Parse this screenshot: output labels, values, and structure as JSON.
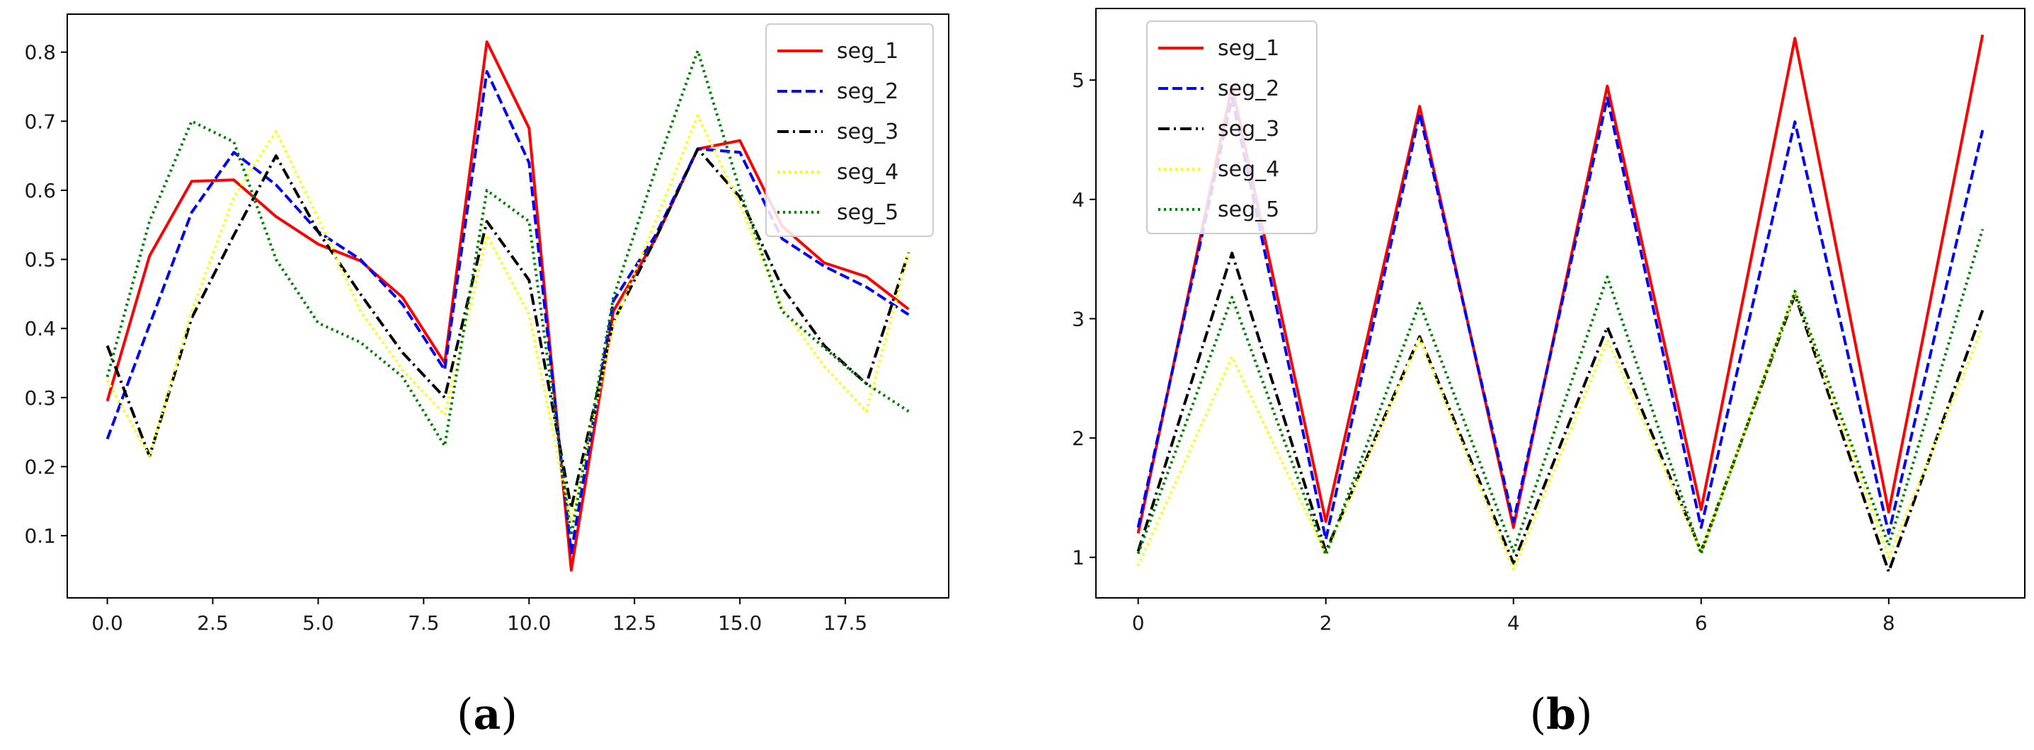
{
  "chart_data": [
    {
      "type": "line",
      "caption_open": "(",
      "caption_letter": "a",
      "caption_close": ")",
      "title": "",
      "xlabel": "",
      "ylabel": "",
      "xlim": [
        -0.95,
        19.95
      ],
      "ylim": [
        0.01,
        0.855
      ],
      "xticks": [
        0,
        2.5,
        5,
        7.5,
        10,
        12.5,
        15,
        17.5
      ],
      "xtick_labels": [
        "0.0",
        "2.5",
        "5.0",
        "7.5",
        "10.0",
        "12.5",
        "15.0",
        "17.5"
      ],
      "yticks": [
        0.1,
        0.2,
        0.3,
        0.4,
        0.5,
        0.6,
        0.7,
        0.8
      ],
      "ytick_labels": [
        "0.1",
        "0.2",
        "0.3",
        "0.4",
        "0.5",
        "0.6",
        "0.7",
        "0.8"
      ],
      "grid": false,
      "legend_position": "top-right",
      "x": [
        0,
        1,
        2,
        3,
        4,
        5,
        6,
        7,
        8,
        9,
        10,
        11,
        12,
        13,
        14,
        15,
        16,
        17,
        18,
        19
      ],
      "series": [
        {
          "name": "seg_1",
          "color": "#ff0000",
          "style": "solid",
          "values": [
            0.295,
            0.505,
            0.613,
            0.615,
            0.562,
            0.522,
            0.498,
            0.445,
            0.35,
            0.815,
            0.69,
            0.05,
            0.425,
            0.53,
            0.66,
            0.672,
            0.548,
            0.495,
            0.475,
            0.428
          ]
        },
        {
          "name": "seg_2",
          "color": "#0000ff",
          "style": "dashed",
          "values": [
            0.24,
            0.405,
            0.568,
            0.655,
            0.608,
            0.54,
            0.5,
            0.435,
            0.34,
            0.772,
            0.64,
            0.075,
            0.44,
            0.535,
            0.66,
            0.655,
            0.53,
            0.49,
            0.46,
            0.42
          ]
        },
        {
          "name": "seg_3",
          "color": "#000000",
          "style": "dashdot",
          "values": [
            0.375,
            0.215,
            0.415,
            0.535,
            0.65,
            0.54,
            0.45,
            0.365,
            0.3,
            0.555,
            0.47,
            0.14,
            0.41,
            0.53,
            0.66,
            0.59,
            0.46,
            0.375,
            0.32,
            0.51
          ]
        },
        {
          "name": "seg_4",
          "color": "#ffff00",
          "style": "dotted",
          "values": [
            0.325,
            0.215,
            0.425,
            0.59,
            0.685,
            0.56,
            0.425,
            0.34,
            0.275,
            0.535,
            0.42,
            0.12,
            0.405,
            0.555,
            0.708,
            0.58,
            0.43,
            0.345,
            0.28,
            0.51
          ]
        },
        {
          "name": "seg_5",
          "color": "#008000",
          "style": "dotted",
          "values": [
            0.33,
            0.555,
            0.7,
            0.67,
            0.5,
            0.408,
            0.38,
            0.33,
            0.23,
            0.6,
            0.555,
            0.1,
            0.445,
            0.63,
            0.802,
            0.6,
            0.425,
            0.372,
            0.32,
            0.28
          ]
        }
      ]
    },
    {
      "type": "line",
      "caption_open": "(",
      "caption_letter": "b",
      "caption_close": ")",
      "title": "",
      "xlabel": "",
      "ylabel": "",
      "xlim": [
        -0.45,
        9.45
      ],
      "ylim": [
        0.66,
        5.6
      ],
      "xticks": [
        0,
        2,
        4,
        6,
        8
      ],
      "xtick_labels": [
        "0",
        "2",
        "4",
        "6",
        "8"
      ],
      "yticks": [
        1,
        2,
        3,
        4,
        5
      ],
      "ytick_labels": [
        "1",
        "2",
        "3",
        "4",
        "5"
      ],
      "grid": false,
      "legend_position": "top-left",
      "x": [
        0,
        1,
        2,
        3,
        4,
        5,
        6,
        7,
        8,
        9
      ],
      "series": [
        {
          "name": "seg_1",
          "color": "#ff0000",
          "style": "solid",
          "values": [
            1.2,
            4.95,
            1.3,
            4.78,
            1.25,
            4.95,
            1.4,
            5.35,
            1.38,
            5.38
          ]
        },
        {
          "name": "seg_2",
          "color": "#0000ff",
          "style": "dashed",
          "values": [
            1.25,
            4.85,
            1.15,
            4.72,
            1.3,
            4.85,
            1.25,
            4.65,
            1.2,
            4.58
          ]
        },
        {
          "name": "seg_3",
          "color": "#000000",
          "style": "dashdot",
          "values": [
            1.05,
            3.55,
            1.05,
            2.85,
            0.95,
            2.93,
            1.05,
            3.2,
            0.88,
            3.07
          ]
        },
        {
          "name": "seg_4",
          "color": "#ffff00",
          "style": "dotted",
          "values": [
            0.93,
            2.68,
            1.03,
            2.83,
            0.9,
            2.82,
            1.05,
            3.22,
            1.0,
            2.93
          ]
        },
        {
          "name": "seg_5",
          "color": "#008000",
          "style": "dotted",
          "values": [
            1.03,
            3.18,
            1.02,
            3.13,
            1.05,
            3.35,
            1.03,
            3.23,
            1.1,
            3.75
          ]
        }
      ]
    }
  ]
}
